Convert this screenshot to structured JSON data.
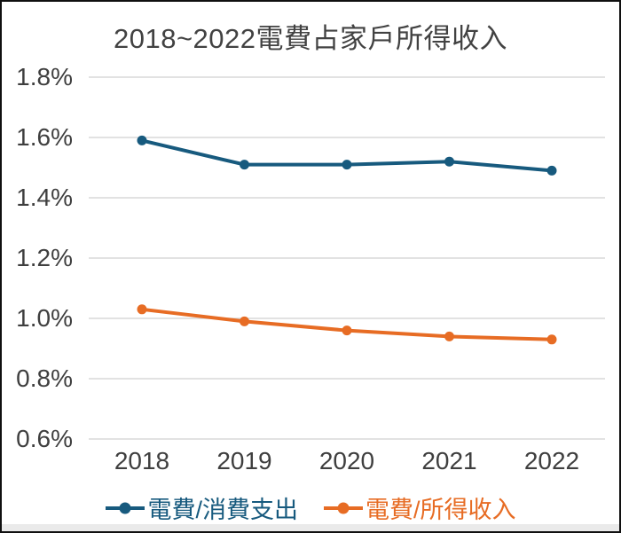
{
  "chart_data": {
    "type": "line",
    "title": "2018~2022電費占家戶所得收入",
    "x": [
      "2018",
      "2019",
      "2020",
      "2021",
      "2022"
    ],
    "series": [
      {
        "name": "電費/消費支出",
        "color": "#175a7e",
        "values": [
          1.59,
          1.51,
          1.51,
          1.52,
          1.49
        ]
      },
      {
        "name": "電費/所得收入",
        "color": "#e76c24",
        "values": [
          1.03,
          0.99,
          0.96,
          0.94,
          0.93
        ]
      }
    ],
    "unit": "%",
    "ylim": [
      0.6,
      1.8
    ],
    "y_tick_step": 0.2,
    "y_tick_labels": [
      "1.8%",
      "1.6%",
      "1.4%",
      "1.2%",
      "1.0%",
      "0.8%",
      "0.6%"
    ],
    "grid": true,
    "gridline_color": "#d9d9d9",
    "legend_position": "bottom"
  }
}
